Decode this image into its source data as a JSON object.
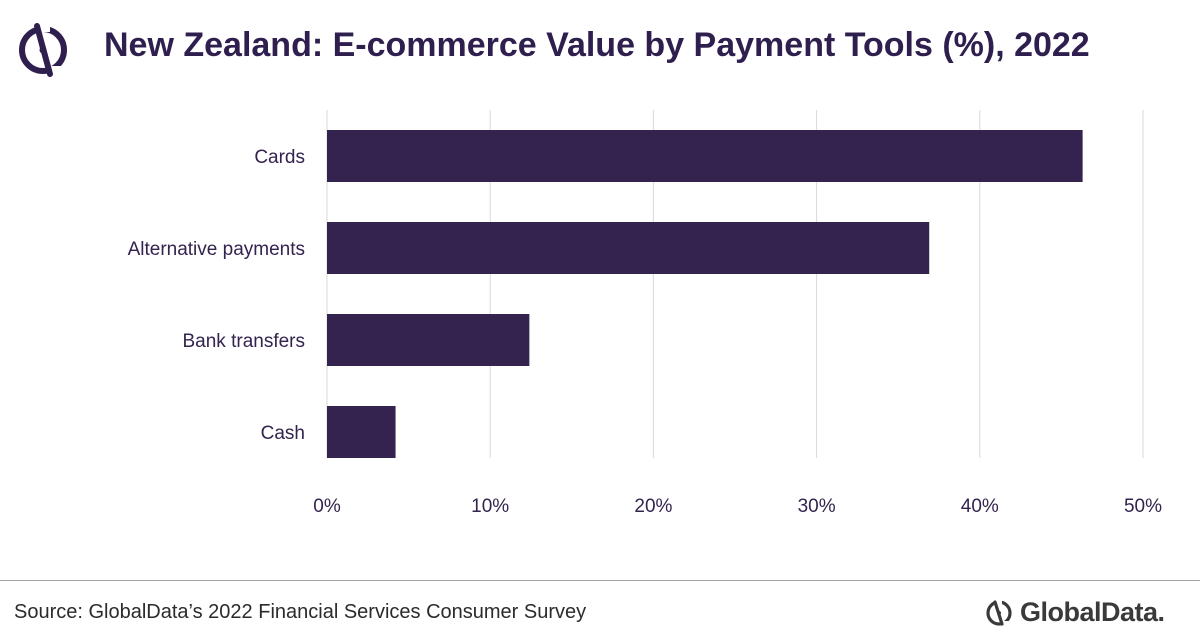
{
  "title": "New Zealand: E-commerce Value by Payment Tools (%), 2022",
  "source": "Source: GlobalData’s 2022 Financial Services Consumer Survey",
  "brand": {
    "name": "GlobalData.",
    "icon": "globaldata-logo-icon"
  },
  "colors": {
    "bar": "#34234f",
    "title": "#2f1f4e",
    "grid": "#d9d9d9",
    "text": "#33234f"
  },
  "chart_data": {
    "type": "bar",
    "orientation": "horizontal",
    "categories": [
      "Cards",
      "Alternative payments",
      "Bank transfers",
      "Cash"
    ],
    "values": [
      46.3,
      36.9,
      12.4,
      4.2
    ],
    "xlim": [
      0,
      50
    ],
    "ticks": [
      "0%",
      "10%",
      "20%",
      "30%",
      "40%",
      "50%"
    ],
    "grid": true,
    "legend": "none"
  }
}
